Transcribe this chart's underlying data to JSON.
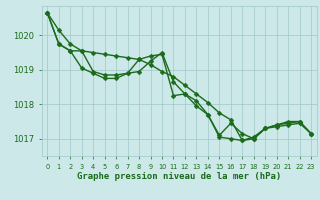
{
  "title": "Graphe pression niveau de la mer (hPa)",
  "xlabel_hours": [
    0,
    1,
    2,
    3,
    4,
    5,
    6,
    7,
    8,
    9,
    10,
    11,
    12,
    13,
    14,
    15,
    16,
    17,
    18,
    19,
    20,
    21,
    22,
    23
  ],
  "ylim": [
    1016.5,
    1020.85
  ],
  "yticks": [
    1017,
    1018,
    1019,
    1020
  ],
  "line1": [
    1020.65,
    1020.15,
    1019.75,
    1019.55,
    1018.95,
    1018.85,
    1018.85,
    1018.9,
    1018.95,
    1019.25,
    1019.5,
    1018.65,
    1018.3,
    1017.95,
    1017.7,
    1017.05,
    1017.0,
    1016.95,
    1017.05,
    1017.3,
    1017.4,
    1017.5,
    1017.5,
    1017.15
  ],
  "line2": [
    1020.65,
    1019.75,
    1019.55,
    1019.55,
    1019.5,
    1019.45,
    1019.4,
    1019.35,
    1019.3,
    1019.15,
    1018.95,
    1018.8,
    1018.55,
    1018.3,
    1018.05,
    1017.75,
    1017.55,
    1016.95,
    1017.0,
    1017.3,
    1017.35,
    1017.4,
    1017.45,
    1017.15
  ],
  "line3": [
    1020.65,
    1019.75,
    1019.55,
    1019.05,
    1018.9,
    1018.75,
    1018.75,
    1018.9,
    1019.3,
    1019.4,
    1019.45,
    1018.25,
    1018.3,
    1018.1,
    1017.7,
    1017.1,
    1017.45,
    1017.15,
    1017.0,
    1017.3,
    1017.4,
    1017.45,
    1017.5,
    1017.15
  ],
  "line_color": "#1a6b1a",
  "bg_color": "#cce8e8",
  "plot_bg": "#cce8e8",
  "grid_color": "#a0c8c8",
  "tick_label_color": "#1a6b1a",
  "title_color": "#1a6b1a",
  "line_width": 1.0,
  "marker_size": 2.5
}
